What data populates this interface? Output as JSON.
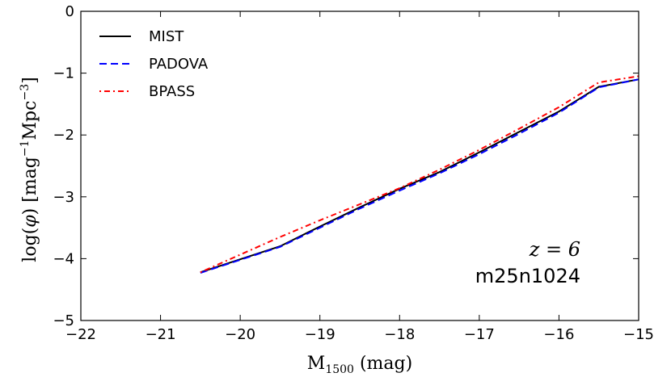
{
  "chart_data": {
    "type": "line",
    "xlabel_main": "M",
    "xlabel_sub": "1500",
    "xlabel_unit": " (mag)",
    "ylabel_pre": "log(",
    "ylabel_phi": "φ",
    "ylabel_mid": ") [mag",
    "ylabel_exp1": "−1",
    "ylabel_mpc": "Mpc",
    "ylabel_exp2": "−3",
    "ylabel_post": "]",
    "xlim": [
      -22,
      -15
    ],
    "ylim": [
      -5,
      0
    ],
    "xticks": [
      -22,
      -21,
      -20,
      -19,
      -18,
      -17,
      -16,
      -15
    ],
    "yticks": [
      -5,
      -4,
      -3,
      -2,
      -1,
      0
    ],
    "xtick_labels": [
      "−22",
      "−21",
      "−20",
      "−19",
      "−18",
      "−17",
      "−16",
      "−15"
    ],
    "ytick_labels": [
      "−5",
      "−4",
      "−3",
      "−2",
      "−1",
      "0"
    ],
    "annotation_z": "z = 6",
    "annotation_sim": "m25n1024",
    "legend_position": "top-left",
    "grid": false,
    "series": [
      {
        "name": "MIST",
        "color": "#000000",
        "style": "solid",
        "x": [
          -20.5,
          -19.5,
          -19.0,
          -18.5,
          -18.0,
          -17.5,
          -17.0,
          -16.5,
          -16.0,
          -15.5,
          -15.0
        ],
        "y": [
          -4.22,
          -3.8,
          -3.48,
          -3.17,
          -2.87,
          -2.6,
          -2.28,
          -1.95,
          -1.62,
          -1.22,
          -1.1
        ]
      },
      {
        "name": "PADOVA",
        "color": "#0000ff",
        "style": "dashed",
        "x": [
          -20.5,
          -19.5,
          -19.0,
          -18.5,
          -18.0,
          -17.5,
          -17.0,
          -16.5,
          -16.0,
          -15.5,
          -15.0
        ],
        "y": [
          -4.23,
          -3.81,
          -3.5,
          -3.19,
          -2.9,
          -2.62,
          -2.31,
          -1.98,
          -1.64,
          -1.23,
          -1.1
        ]
      },
      {
        "name": "BPASS",
        "color": "#ff0000",
        "style": "dashdot",
        "x": [
          -20.5,
          -19.5,
          -19.0,
          -18.5,
          -18.0,
          -17.5,
          -17.0,
          -16.5,
          -16.0,
          -15.5,
          -15.0
        ],
        "y": [
          -4.22,
          -3.65,
          -3.38,
          -3.12,
          -2.86,
          -2.56,
          -2.24,
          -1.9,
          -1.55,
          -1.15,
          -1.05
        ]
      }
    ]
  }
}
